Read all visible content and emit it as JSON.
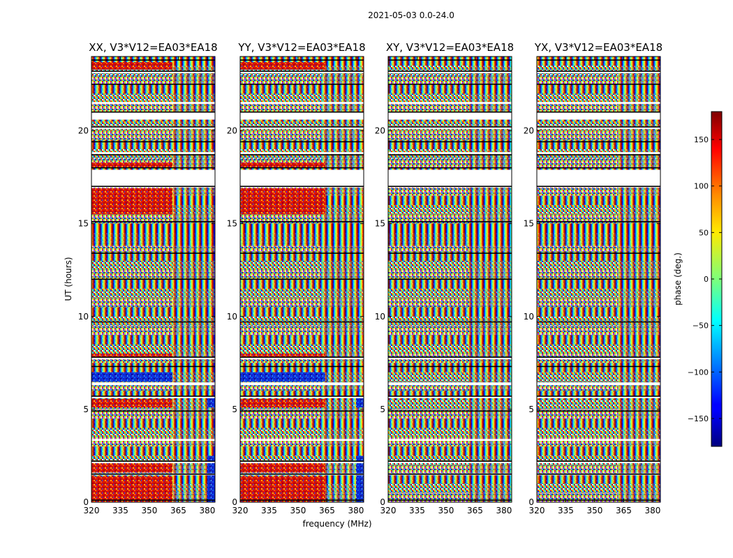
{
  "chart_data": {
    "type": "heatmap",
    "suptitle": "2021-05-03 0.0-24.0",
    "xlabel": "frequency (MHz)",
    "ylabel": "UT (hours)",
    "xlim": [
      320,
      384
    ],
    "ylim": [
      0,
      24
    ],
    "x_ticks": [
      320,
      335,
      350,
      365,
      380
    ],
    "y_ticks": [
      0,
      5,
      10,
      15,
      20
    ],
    "panels": [
      {
        "title": "XX, V3*V12=EA03*EA18",
        "polarization": "XX"
      },
      {
        "title": "YY, V3*V12=EA03*EA18",
        "polarization": "YY"
      },
      {
        "title": "XY, V3*V12=EA03*EA18",
        "polarization": "XY"
      },
      {
        "title": "YX, V3*V12=EA03*EA18",
        "polarization": "YX"
      }
    ],
    "flagged_gaps_hours": [
      [
        1.45,
        1.55
      ],
      [
        2.1,
        2.2
      ],
      [
        3.3,
        3.4
      ],
      [
        5.6,
        5.7
      ],
      [
        6.3,
        6.45
      ],
      [
        7.7,
        7.8
      ],
      [
        17.6,
        16.95
      ],
      [
        17.9,
        17.0
      ],
      [
        18.85,
        18.75
      ],
      [
        20.1,
        20.2
      ],
      [
        20.6,
        21.0
      ],
      [
        21.45,
        21.55
      ],
      [
        23.1,
        23.2
      ]
    ],
    "colorbar": {
      "label": "phase (deg.)",
      "range": [
        -180,
        180
      ],
      "ticks": [
        150,
        100,
        50,
        0,
        -50,
        -100,
        -150
      ],
      "tick_labels": [
        "150",
        "100",
        "50",
        "0",
        "−50",
        "−100",
        "−150"
      ],
      "colormap": "jet"
    }
  }
}
